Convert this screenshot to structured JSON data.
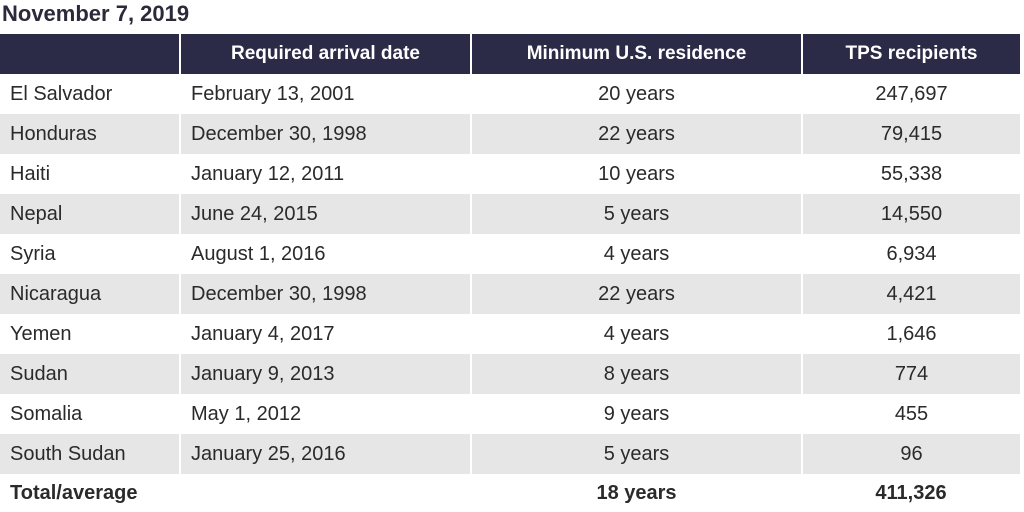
{
  "title": "November 7, 2019",
  "chart_data": {
    "type": "table",
    "columns": [
      "",
      "Required arrival date",
      "Minimum U.S. residence",
      "TPS recipients"
    ],
    "rows": [
      [
        "El Salvador",
        "February 13, 2001",
        "20 years",
        "247,697"
      ],
      [
        "Honduras",
        "December 30, 1998",
        "22 years",
        "79,415"
      ],
      [
        "Haiti",
        "January 12, 2011",
        "10 years",
        "55,338"
      ],
      [
        "Nepal",
        "June 24, 2015",
        "5 years",
        "14,550"
      ],
      [
        "Syria",
        "August 1, 2016",
        "4 years",
        "6,934"
      ],
      [
        "Nicaragua",
        "December 30, 1998",
        "22 years",
        "4,421"
      ],
      [
        "Yemen",
        "January 4, 2017",
        "4 years",
        "1,646"
      ],
      [
        "Sudan",
        "January 9, 2013",
        "8 years",
        "774"
      ],
      [
        "Somalia",
        "May 1, 2012",
        "9 years",
        "455"
      ],
      [
        "South Sudan",
        "January 25, 2016",
        "5 years",
        "96"
      ]
    ],
    "total": [
      "Total/average",
      "",
      "18 years",
      "411,326"
    ]
  },
  "colors": {
    "header_bg": "#2b2a47",
    "header_text": "#ffffff",
    "row_alt_bg": "#e6e6e6",
    "text": "#2a2a2a"
  }
}
